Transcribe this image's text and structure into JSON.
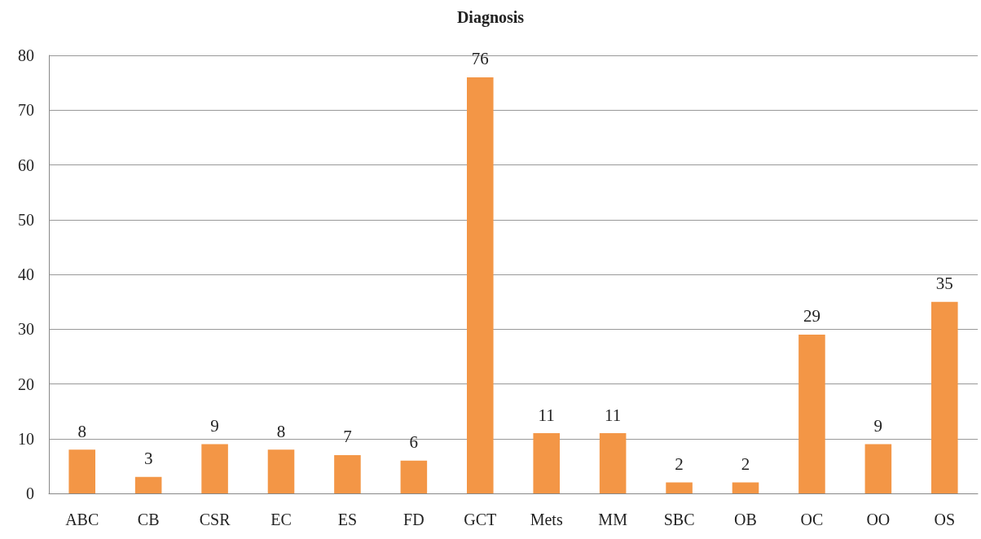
{
  "chart_data": {
    "type": "bar",
    "title": "Diagnosis",
    "categories": [
      "ABC",
      "CB",
      "CSR",
      "EC",
      "ES",
      "FD",
      "GCT",
      "Mets",
      "MM",
      "SBC",
      "OB",
      "OC",
      "OO",
      "OS"
    ],
    "values": [
      8,
      3,
      9,
      8,
      7,
      6,
      76,
      11,
      11,
      2,
      2,
      29,
      9,
      35
    ],
    "color": "#f39646",
    "ylim": [
      0,
      80
    ],
    "yticks": [
      0,
      10,
      20,
      30,
      40,
      50,
      60,
      70,
      80
    ],
    "grid": "y",
    "data_labels": true
  }
}
